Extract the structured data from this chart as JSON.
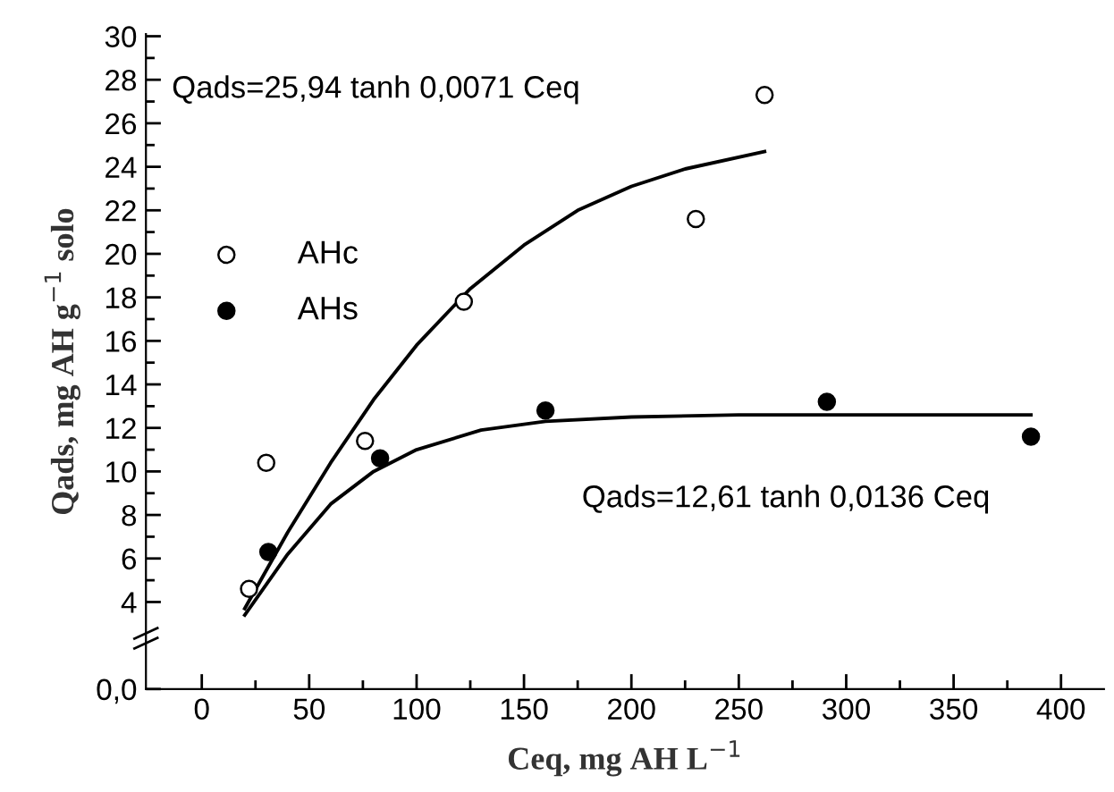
{
  "chart_data": {
    "type": "scatter",
    "xlabel": "Ceq, mg AH L$^{−1}$",
    "ylabel": "Qads, mg AH g$^{−1}$ solo",
    "xlim": [
      -26,
      420
    ],
    "xticks": [
      0,
      50,
      100,
      150,
      200,
      250,
      300,
      350,
      400
    ],
    "ylim": [
      0,
      30.1
    ],
    "yticks": [
      {
        "value": 0,
        "label": "0,0"
      },
      4,
      6,
      8,
      10,
      12,
      14,
      16,
      18,
      20,
      22,
      24,
      26,
      28,
      30
    ],
    "grid": false,
    "legend": "left",
    "series": [
      {
        "name": "AHc",
        "marker": "circle",
        "color": "#ffffff",
        "x": [
          22,
          30,
          76,
          122,
          230,
          262
        ],
        "values": [
          4.6,
          10.4,
          11.4,
          17.8,
          21.6,
          27.3
        ]
      },
      {
        "name": "AHs",
        "marker": "circle",
        "color": "#000000",
        "x": [
          31,
          83,
          160,
          291,
          386
        ],
        "values": [
          6.3,
          10.6,
          12.8,
          13.2,
          11.6
        ]
      },
      {
        "type": "line",
        "marker": "none",
        "color": "#000000",
        "line_style": "solid",
        "x": [
          20,
          40,
          60,
          80,
          100,
          125,
          150,
          175,
          200,
          225,
          262
        ],
        "values": [
          3.7,
          7.2,
          10.4,
          13.3,
          15.8,
          18.4,
          20.4,
          22.0,
          23.1,
          23.9,
          24.7
        ]
      },
      {
        "type": "line",
        "marker": "none",
        "color": "#000000",
        "line_style": "solid",
        "x": [
          20,
          40,
          60,
          80,
          100,
          130,
          160,
          200,
          250,
          300,
          386
        ],
        "values": [
          3.4,
          6.2,
          8.5,
          10.0,
          11.0,
          11.9,
          12.3,
          12.5,
          12.6,
          12.6,
          12.6
        ]
      }
    ],
    "annotations": [
      "Qads=25,94 tanh 0,0071 Ceq",
      "Qads=12,61 tanh 0,0136 Ceq"
    ]
  }
}
